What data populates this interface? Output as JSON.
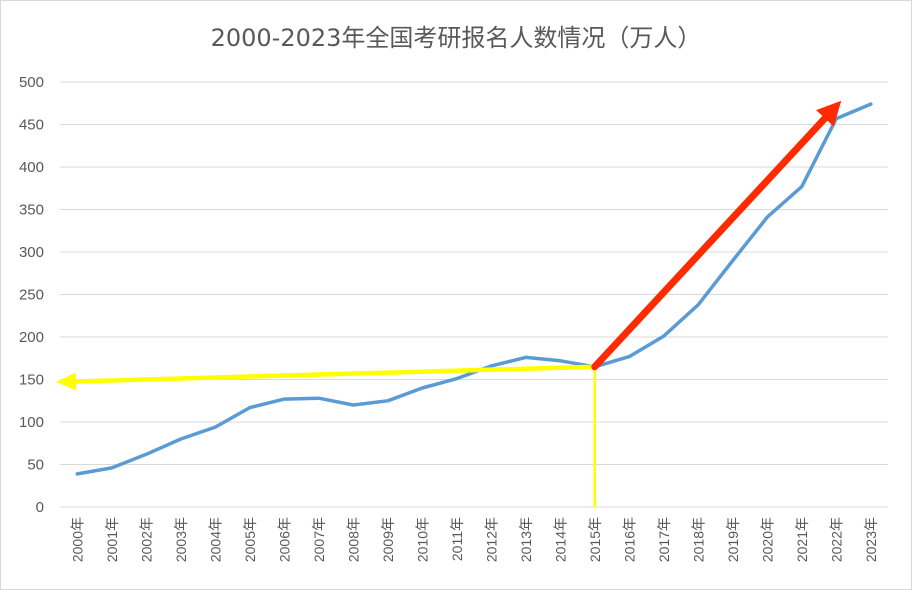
{
  "chart_data": {
    "type": "line",
    "title": "2000-2023年全国考研报名人数情况（万人）",
    "xlabel": "",
    "ylabel": "",
    "categories": [
      "2000年",
      "2001年",
      "2002年",
      "2003年",
      "2004年",
      "2005年",
      "2006年",
      "2007年",
      "2008年",
      "2009年",
      "2010年",
      "2011年",
      "2012年",
      "2013年",
      "2014年",
      "2015年",
      "2016年",
      "2017年",
      "2018年",
      "2019年",
      "2020年",
      "2021年",
      "2022年",
      "2023年"
    ],
    "series": [
      {
        "values": [
          39,
          46,
          62,
          80,
          94,
          117,
          127,
          128,
          120,
          125,
          140,
          151,
          166,
          176,
          172,
          165,
          177,
          201,
          238,
          290,
          341,
          377,
          457,
          474
        ]
      }
    ],
    "ylim": [
      0,
      500
    ],
    "yticks": [
      0,
      50,
      100,
      150,
      200,
      250,
      300,
      350,
      400,
      450,
      500
    ],
    "grid": true,
    "legend": "none",
    "annotations": [
      {
        "kind": "arrow",
        "color": "#FFFF00",
        "from": {
          "x": "2015年",
          "y": 165
        },
        "to_y": 147,
        "direction": "left"
      },
      {
        "kind": "vertical-line",
        "color": "#FFFF00",
        "x": "2015年",
        "from_y": 165,
        "to_y": 0
      },
      {
        "kind": "arrow",
        "color": "#FF2A00",
        "from": {
          "x": "2015年",
          "y": 165
        },
        "to": {
          "x": "2022年",
          "y": 478
        }
      }
    ],
    "colors": {
      "series": "#5B9BD5",
      "grid": "#D9D9D9",
      "axis_text": "#595959"
    }
  }
}
